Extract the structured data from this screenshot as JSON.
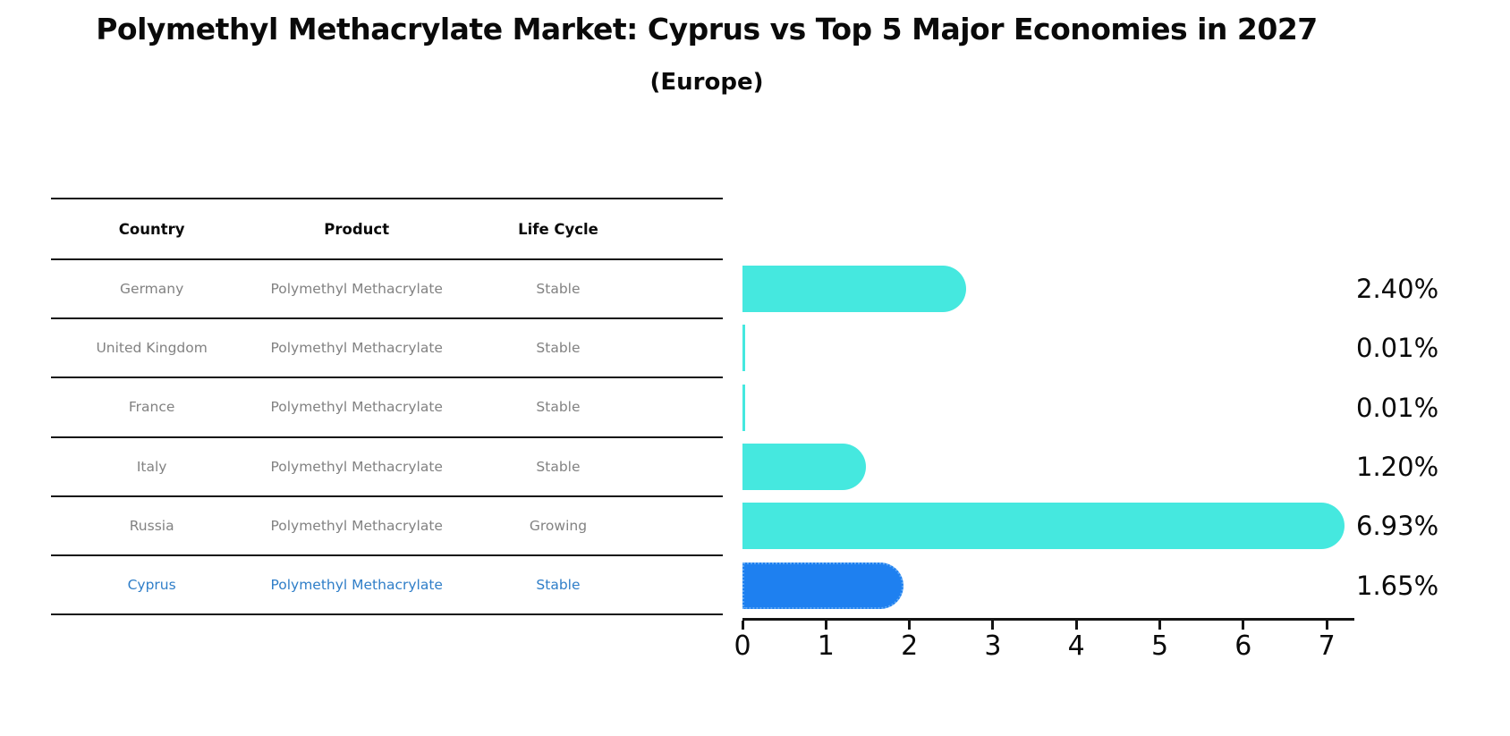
{
  "title": "Polymethyl Methacrylate Market: Cyprus vs Top 5 Major Economies in 2027",
  "subtitle": "(Europe)",
  "table": {
    "headers": [
      "Country",
      "Product",
      "Life Cycle"
    ],
    "rows": [
      {
        "country": "Germany",
        "product": "Polymethyl Methacrylate",
        "life_cycle": "Stable"
      },
      {
        "country": "United Kingdom",
        "product": "Polymethyl Methacrylate",
        "life_cycle": "Stable"
      },
      {
        "country": "France",
        "product": "Polymethyl Methacrylate",
        "life_cycle": "Stable"
      },
      {
        "country": "Italy",
        "product": "Polymethyl Methacrylate",
        "life_cycle": "Stable"
      },
      {
        "country": "Russia",
        "product": "Polymethyl Methacrylate",
        "life_cycle": "Growing"
      },
      {
        "country": "Cyprus",
        "product": "Polymethyl Methacrylate",
        "life_cycle": "Stable"
      }
    ]
  },
  "chart_data": {
    "type": "bar",
    "orientation": "horizontal",
    "title": "Polymethyl Methacrylate Market: Cyprus vs Top 5 Major Economies in 2027",
    "subtitle": "(Europe)",
    "categories": [
      "Germany",
      "United Kingdom",
      "France",
      "Italy",
      "Russia",
      "Cyprus"
    ],
    "values": [
      2.4,
      0.01,
      0.01,
      1.2,
      6.93,
      1.65
    ],
    "value_labels": [
      "2.40%",
      "0.01%",
      "0.01%",
      "1.20%",
      "6.93%",
      "1.65%"
    ],
    "xlabel": "",
    "ylabel": "",
    "xlim": [
      0,
      7.32
    ],
    "x_ticks": [
      0,
      1,
      2,
      3,
      4,
      5,
      6,
      7
    ],
    "grid": false,
    "legend": "none",
    "highlight_index": 5,
    "colors": {
      "bar": "#45e8df",
      "highlight_bar": "#1e80f0",
      "highlight_border": "#5fa8f5",
      "highlight_text": "#2f7ec8",
      "table_text": "#828282",
      "heading_text": "#0a0a0a",
      "line": "#141414"
    }
  }
}
